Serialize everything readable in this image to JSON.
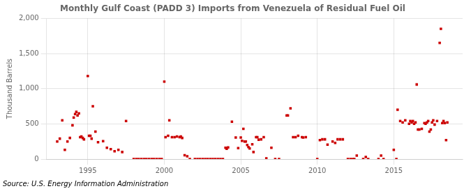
{
  "chart_data": {
    "type": "scatter",
    "title": "Monthly Gulf Coast (PADD 3) Imports from Venezuela of Residual Fuel Oil",
    "ylabel": "Thousand Barrels",
    "annotation": "Source: U.S. Energy Information Administration",
    "color": "#cc0000",
    "marker": "square",
    "grid": true,
    "xlim": [
      1992.3,
      2019.5
    ],
    "xticks": [
      1995,
      2000,
      2005,
      2010,
      2015
    ],
    "ylim": [
      0,
      2000
    ],
    "yticks": [
      0,
      500,
      {
        "value": 1000,
        "label": "1,000"
      },
      {
        "value": 1500,
        "label": "1,500"
      },
      {
        "value": 2000,
        "label": "2,000"
      }
    ],
    "x": [
      1993.0,
      1993.17,
      1993.33,
      1993.5,
      1993.67,
      1993.83,
      1994.0,
      1994.08,
      1994.17,
      1994.25,
      1994.33,
      1994.42,
      1994.5,
      1994.58,
      1994.67,
      1994.75,
      1995.0,
      1995.08,
      1995.17,
      1995.25,
      1995.33,
      1995.5,
      1995.67,
      1996.0,
      1996.25,
      1996.5,
      1996.75,
      1997.0,
      1997.25,
      1997.5,
      1998.0,
      1998.17,
      1998.33,
      1998.5,
      1998.67,
      1998.83,
      1999.0,
      1999.17,
      1999.33,
      1999.5,
      1999.67,
      1999.83,
      2000.0,
      2000.08,
      2000.25,
      2000.33,
      2000.5,
      2000.67,
      2000.83,
      2001.0,
      2001.08,
      2001.17,
      2001.33,
      2001.5,
      2001.67,
      2002.0,
      2002.17,
      2002.33,
      2002.5,
      2002.67,
      2002.83,
      2003.0,
      2003.17,
      2003.33,
      2003.5,
      2003.67,
      2003.83,
      2004.0,
      2004.08,
      2004.17,
      2004.42,
      2004.67,
      2004.83,
      2005.0,
      2005.08,
      2005.17,
      2005.25,
      2005.33,
      2005.42,
      2005.5,
      2005.58,
      2005.75,
      2005.83,
      2006.0,
      2006.08,
      2006.17,
      2006.33,
      2006.5,
      2006.67,
      2007.0,
      2007.25,
      2007.5,
      2008.0,
      2008.08,
      2008.25,
      2008.42,
      2008.58,
      2008.75,
      2009.0,
      2009.08,
      2009.25,
      2010.0,
      2010.17,
      2010.33,
      2010.5,
      2010.67,
      2011.0,
      2011.17,
      2011.33,
      2011.5,
      2011.67,
      2012.0,
      2012.17,
      2012.33,
      2012.42,
      2012.58,
      2013.0,
      2013.17,
      2013.33,
      2014.0,
      2014.17,
      2014.33,
      2015.0,
      2015.17,
      2015.25,
      2015.42,
      2015.58,
      2015.75,
      2016.0,
      2016.08,
      2016.17,
      2016.25,
      2016.33,
      2016.42,
      2016.5,
      2016.58,
      2016.67,
      2016.83,
      2017.0,
      2017.08,
      2017.17,
      2017.25,
      2017.33,
      2017.42,
      2017.5,
      2017.58,
      2017.67,
      2017.83,
      2018.0,
      2018.08,
      2018.17,
      2018.25,
      2018.33,
      2018.42,
      2018.5
    ],
    "values": [
      250,
      290,
      550,
      130,
      250,
      300,
      480,
      590,
      640,
      670,
      620,
      650,
      310,
      320,
      300,
      280,
      1180,
      330,
      330,
      290,
      750,
      390,
      240,
      255,
      160,
      140,
      110,
      130,
      100,
      540,
      0,
      0,
      0,
      0,
      0,
      0,
      0,
      0,
      0,
      0,
      0,
      0,
      1100,
      310,
      330,
      550,
      310,
      310,
      320,
      310,
      320,
      300,
      55,
      40,
      0,
      0,
      0,
      0,
      0,
      0,
      0,
      0,
      0,
      0,
      0,
      0,
      0,
      160,
      145,
      165,
      530,
      305,
      155,
      305,
      260,
      430,
      250,
      250,
      200,
      170,
      150,
      210,
      100,
      310,
      310,
      275,
      280,
      310,
      10,
      160,
      0,
      0,
      620,
      620,
      720,
      310,
      310,
      330,
      310,
      305,
      310,
      0,
      270,
      280,
      280,
      205,
      250,
      230,
      280,
      280,
      280,
      0,
      0,
      0,
      0,
      50,
      0,
      30,
      0,
      0,
      50,
      0,
      130,
      0,
      700,
      540,
      520,
      550,
      500,
      540,
      520,
      540,
      500,
      520,
      1060,
      420,
      420,
      430,
      510,
      500,
      520,
      540,
      390,
      420,
      520,
      550,
      490,
      540,
      1650,
      1850,
      510,
      540,
      510,
      270,
      520
    ]
  }
}
